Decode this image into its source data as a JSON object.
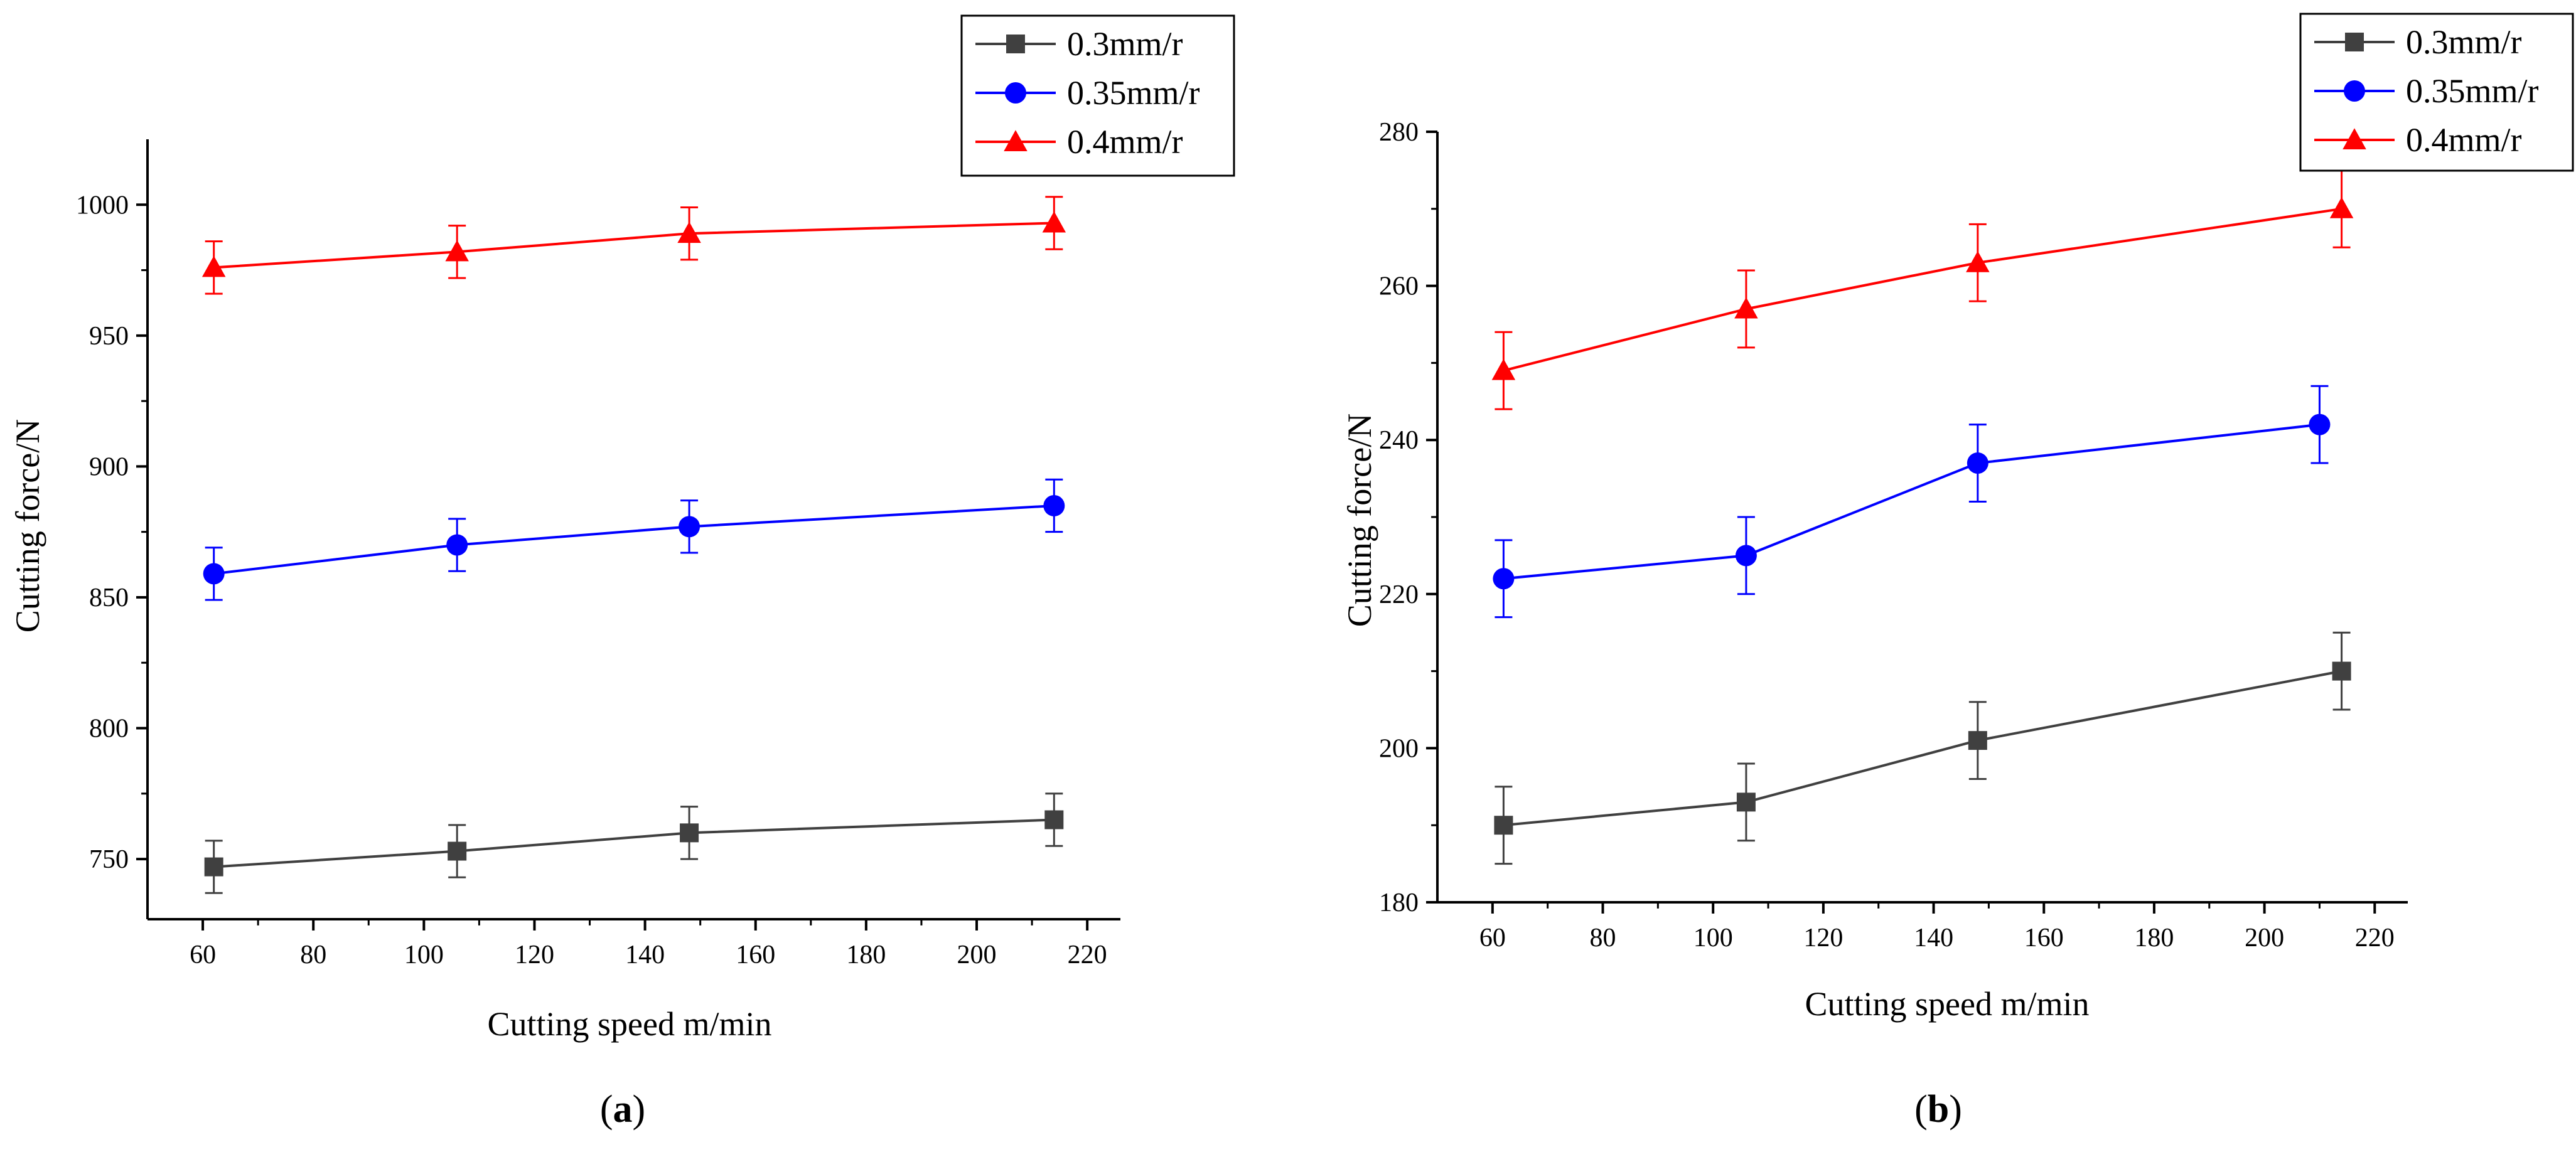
{
  "chart_data": [
    {
      "type": "line",
      "caption": "a",
      "xlabel": "Cutting speed m/min",
      "ylabel": "Cutting force/N",
      "xlim": [
        50,
        226
      ],
      "ylim": [
        727,
        1025
      ],
      "xticks": [
        60,
        80,
        100,
        120,
        140,
        160,
        180,
        200,
        220
      ],
      "yticks": [
        750,
        800,
        850,
        900,
        950,
        1000
      ],
      "legend_position": "top-right",
      "series": [
        {
          "name": "0.3mm/r",
          "marker": "square",
          "color": "#404040",
          "x": [
            62,
            106,
            148,
            214
          ],
          "y": [
            747,
            753,
            760,
            765
          ],
          "error": [
            10,
            10,
            10,
            10
          ]
        },
        {
          "name": "0.35mm/r",
          "marker": "circle",
          "color": "#0000ff",
          "x": [
            62,
            106,
            148,
            214
          ],
          "y": [
            859,
            870,
            877,
            885
          ],
          "error": [
            10,
            10,
            10,
            10
          ]
        },
        {
          "name": "0.4mm/r",
          "marker": "triangle",
          "color": "#ff0000",
          "x": [
            62,
            106,
            148,
            214
          ],
          "y": [
            976,
            982,
            989,
            993
          ],
          "error": [
            10,
            10,
            10,
            10
          ]
        }
      ]
    },
    {
      "type": "line",
      "caption": "b",
      "xlabel": "Cutting speed m/min",
      "ylabel": "Cutting force/N",
      "xlim": [
        50,
        226
      ],
      "ylim": [
        180,
        280
      ],
      "xticks": [
        60,
        80,
        100,
        120,
        140,
        160,
        180,
        200,
        220
      ],
      "yticks": [
        180,
        200,
        220,
        240,
        260,
        280
      ],
      "legend_position": "top-right",
      "series": [
        {
          "name": "0.3mm/r",
          "marker": "square",
          "color": "#404040",
          "x": [
            62,
            106,
            148,
            214
          ],
          "y": [
            190,
            193,
            201,
            210
          ],
          "error": [
            5,
            5,
            5,
            5
          ]
        },
        {
          "name": "0.35mm/r",
          "marker": "circle",
          "color": "#0000ff",
          "x": [
            62,
            106,
            148,
            210
          ],
          "y": [
            222,
            225,
            237,
            242
          ],
          "error": [
            5,
            5,
            5,
            5
          ]
        },
        {
          "name": "0.4mm/r",
          "marker": "triangle",
          "color": "#ff0000",
          "x": [
            62,
            106,
            148,
            214
          ],
          "y": [
            249,
            257,
            263,
            270
          ],
          "error": [
            5,
            5,
            5,
            5
          ]
        }
      ]
    }
  ]
}
